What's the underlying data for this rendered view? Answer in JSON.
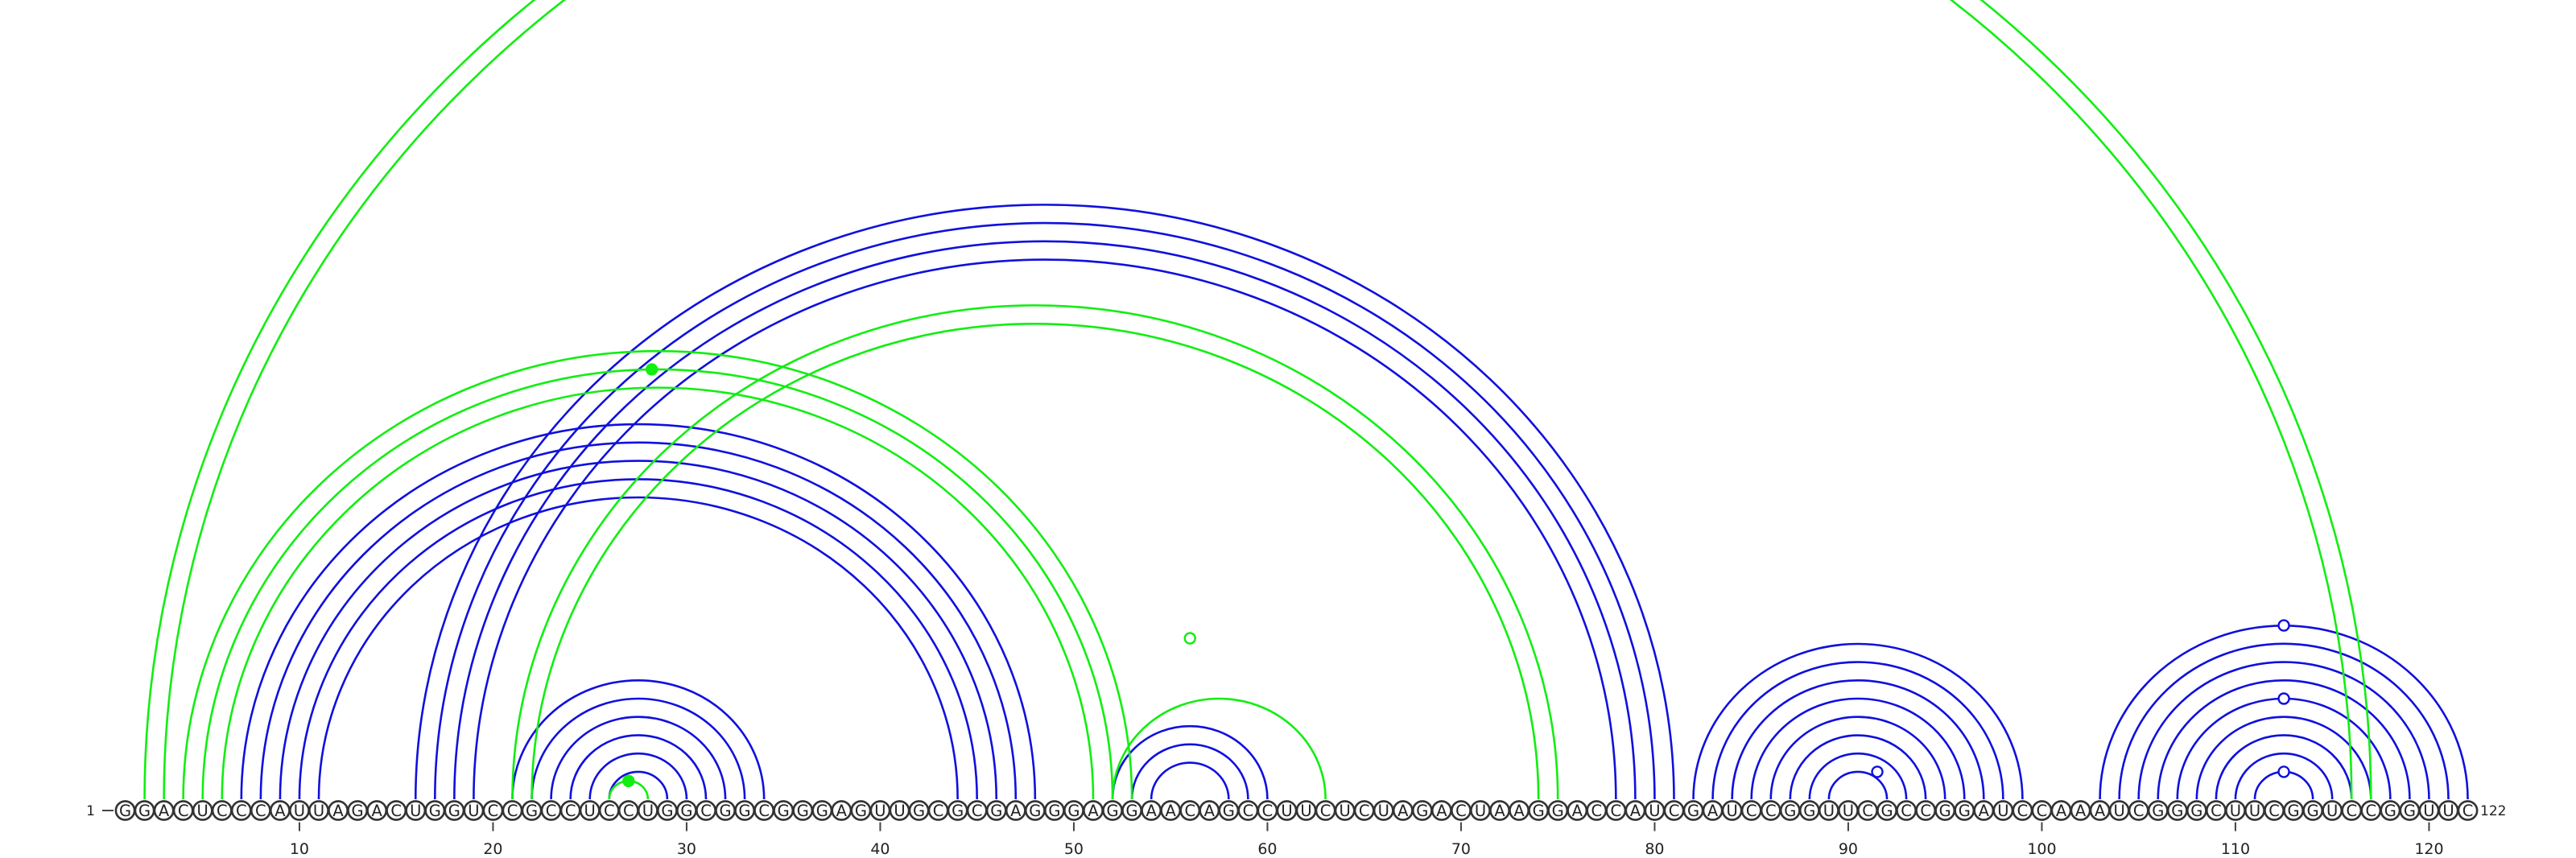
{
  "sequence": "GGACUCCCAUUAGACUGGUCCGCCUCCUGGCGGCGGGAGUUGCGCGAGGGAGGAACAGCCUUCUCUAGACUAAGGACCAUCGAUCCGGUUCGCCGGAUCCAAAUCGGGCUUCGGUCCGGUUC",
  "start_label": "1",
  "end_label": "122",
  "ticks": [
    10,
    20,
    30,
    40,
    50,
    60,
    70,
    80,
    90,
    100,
    110,
    120
  ],
  "colors": {
    "blue": "#1010dd",
    "green": "#11ee11",
    "nucleotide_outline": "#333333",
    "text": "#222222"
  },
  "arc_groups": [
    {
      "color": "blue",
      "side": "below_sequence",
      "pairs": [
        [
          7,
          48
        ],
        [
          8,
          47
        ],
        [
          9,
          46
        ],
        [
          10,
          45
        ],
        [
          11,
          44
        ]
      ]
    },
    {
      "color": "blue",
      "side": "below_sequence",
      "pairs": [
        [
          16,
          81
        ],
        [
          17,
          80
        ],
        [
          18,
          79
        ],
        [
          19,
          78
        ]
      ]
    },
    {
      "color": "blue",
      "side": "below_sequence",
      "pairs": [
        [
          21,
          34
        ],
        [
          22,
          33
        ],
        [
          23,
          32
        ],
        [
          24,
          31
        ],
        [
          25,
          30
        ],
        [
          26,
          29
        ]
      ]
    },
    {
      "color": "blue",
      "side": "below_sequence",
      "pairs": [
        [
          52,
          60
        ],
        [
          53,
          59
        ],
        [
          54,
          58
        ]
      ]
    },
    {
      "color": "blue",
      "side": "below_sequence",
      "pairs": [
        [
          82,
          99
        ],
        [
          83,
          98
        ],
        [
          84,
          97
        ],
        [
          85,
          96
        ],
        [
          86,
          95
        ],
        [
          87,
          94
        ],
        [
          88,
          93
        ],
        [
          89,
          92
        ]
      ]
    },
    {
      "color": "blue",
      "side": "below_sequence",
      "pairs": [
        [
          103,
          122
        ],
        [
          104,
          121
        ],
        [
          105,
          120
        ],
        [
          106,
          119
        ],
        [
          107,
          118
        ],
        [
          108,
          117
        ],
        [
          109,
          116
        ],
        [
          110,
          115
        ],
        [
          111,
          114
        ]
      ]
    },
    {
      "color": "green",
      "side": "below_sequence",
      "pairs": [
        [
          2,
          117
        ],
        [
          3,
          116
        ]
      ]
    },
    {
      "color": "green",
      "side": "below_sequence",
      "pairs": [
        [
          4,
          53
        ],
        [
          5,
          52
        ],
        [
          6,
          51
        ]
      ]
    },
    {
      "color": "green",
      "side": "below_sequence",
      "pairs": [
        [
          21,
          75
        ],
        [
          22,
          74
        ]
      ]
    },
    {
      "color": "green",
      "side": "below_sequence",
      "pairs": [
        [
          52,
          63
        ]
      ]
    },
    {
      "color": "green",
      "side": "below_sequence",
      "pairs": [
        [
          26,
          28
        ]
      ]
    }
  ],
  "markers": [
    {
      "position": 28.2,
      "level": 0.72,
      "color": "green",
      "filled": true
    },
    {
      "position": 27.0,
      "level": 0.0,
      "color": "green",
      "filled": true
    },
    {
      "position": 56.0,
      "level": 0.5,
      "color": "green",
      "filled": false
    },
    {
      "position": 91.5,
      "level": 0.0,
      "color": "blue",
      "filled": false
    },
    {
      "position": 112.5,
      "level": 0.0,
      "color": "blue",
      "filled": false
    },
    {
      "position": 112.5,
      "level": 0.5,
      "color": "blue",
      "filled": false
    },
    {
      "position": 112.5,
      "level": 1.0,
      "color": "blue",
      "filled": false
    }
  ]
}
